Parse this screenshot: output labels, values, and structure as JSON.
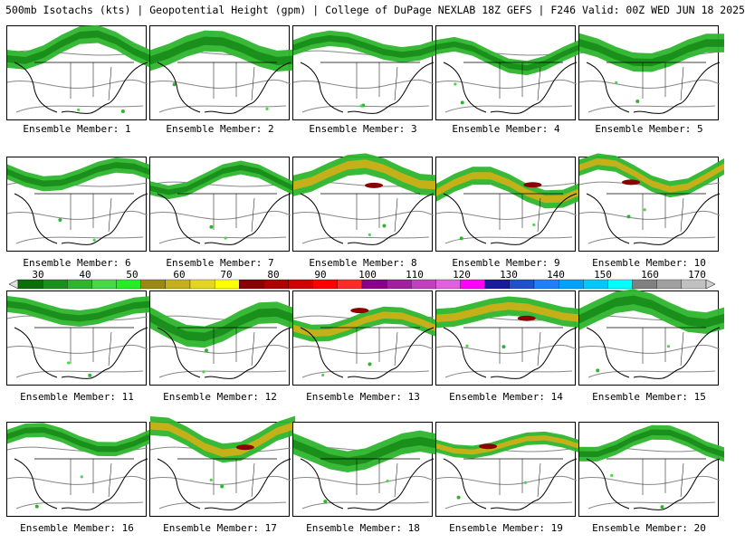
{
  "header": {
    "title": "500mb Isotachs (kts) | Geopotential Height (gpm) | College of DuPage NEXLAB   18Z GEFS | F246 Valid: 00Z WED JUN 18 2025"
  },
  "members": [
    {
      "label": "Ensemble Member: 1"
    },
    {
      "label": "Ensemble Member: 2"
    },
    {
      "label": "Ensemble Member: 3"
    },
    {
      "label": "Ensemble Member: 4"
    },
    {
      "label": "Ensemble Member: 5"
    },
    {
      "label": "Ensemble Member: 6"
    },
    {
      "label": "Ensemble Member: 7"
    },
    {
      "label": "Ensemble Member: 8"
    },
    {
      "label": "Ensemble Member: 9"
    },
    {
      "label": "Ensemble Member: 10"
    },
    {
      "label": "Ensemble Member: 11"
    },
    {
      "label": "Ensemble Member: 12"
    },
    {
      "label": "Ensemble Member: 13"
    },
    {
      "label": "Ensemble Member: 14"
    },
    {
      "label": "Ensemble Member: 15"
    },
    {
      "label": "Ensemble Member: 16"
    },
    {
      "label": "Ensemble Member: 17"
    },
    {
      "label": "Ensemble Member: 18"
    },
    {
      "label": "Ensemble Member: 19"
    },
    {
      "label": "Ensemble Member: 20"
    }
  ],
  "colorbar": {
    "ticks": [
      "30",
      "40",
      "50",
      "60",
      "70",
      "80",
      "90",
      "100",
      "110",
      "120",
      "130",
      "140",
      "150",
      "160",
      "170"
    ],
    "colors": [
      "#0a6e0a",
      "#1b8f1b",
      "#2db52d",
      "#46d846",
      "#22f022",
      "#9a8a10",
      "#c6b01a",
      "#e3d61e",
      "#ffff00",
      "#8b0000",
      "#b00000",
      "#d40000",
      "#ff0000",
      "#ff2a2a",
      "#8b008b",
      "#a020a0",
      "#c040c0",
      "#e060e0",
      "#ff00ff",
      "#1a1aa0",
      "#1e50d0",
      "#1e7fff",
      "#00a0ff",
      "#00c8ff",
      "#00ffff",
      "#808080",
      "#a0a0a0",
      "#c0c0c0"
    ]
  }
}
